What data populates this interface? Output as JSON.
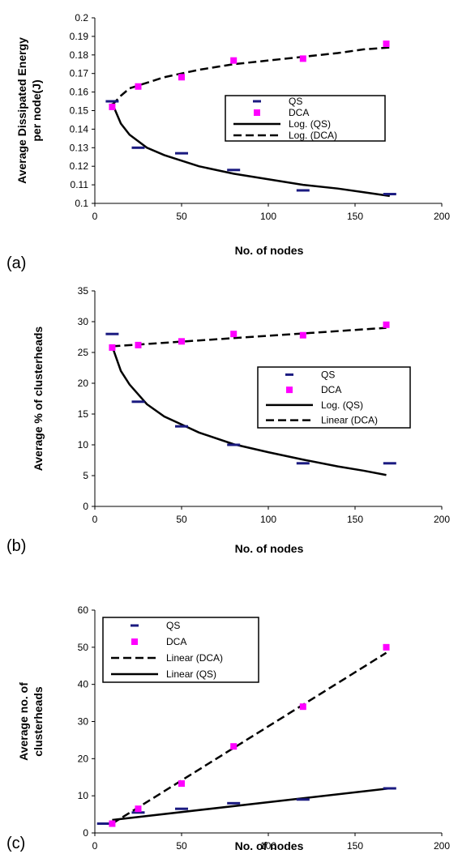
{
  "chart_data": [
    {
      "type": "scatter",
      "panel_label": "(a)",
      "xlabel": "No. of nodes",
      "ylabel": [
        "Average Dissipated Energy",
        "per node(J)"
      ],
      "xlim": [
        0,
        200
      ],
      "ylim": [
        0.1,
        0.2
      ],
      "xticks": [
        "0",
        "50",
        "100",
        "150",
        "200"
      ],
      "yticks": [
        "0.1",
        "0.11",
        "0.12",
        "0.13",
        "0.14",
        "0.15",
        "0.16",
        "0.17",
        "0.18",
        "0.19",
        "0.2"
      ],
      "legend_position": "center-right",
      "series": [
        {
          "name": "QS",
          "marker": "dash",
          "color": "#1a1a80",
          "x": [
            10,
            25,
            50,
            80,
            120,
            170
          ],
          "y": [
            0.155,
            0.13,
            0.127,
            0.118,
            0.107,
            0.105
          ]
        },
        {
          "name": "DCA",
          "marker": "square",
          "color": "#ff00ff",
          "x": [
            10,
            25,
            50,
            80,
            120,
            168
          ],
          "y": [
            0.152,
            0.163,
            0.168,
            0.177,
            0.178,
            0.186
          ]
        },
        {
          "name": "Log. (QS)",
          "line": "solid",
          "color": "#000000",
          "x": [
            10,
            15,
            20,
            30,
            40,
            50,
            60,
            80,
            100,
            120,
            140,
            155,
            170
          ],
          "y": [
            0.154,
            0.143,
            0.137,
            0.13,
            0.126,
            0.123,
            0.12,
            0.116,
            0.113,
            0.11,
            0.108,
            0.106,
            0.104
          ]
        },
        {
          "name": "Log. (DCA)",
          "line": "dashed",
          "color": "#000000",
          "x": [
            10,
            15,
            20,
            30,
            40,
            50,
            60,
            80,
            100,
            120,
            140,
            155,
            170
          ],
          "y": [
            0.153,
            0.158,
            0.162,
            0.165,
            0.168,
            0.17,
            0.172,
            0.175,
            0.177,
            0.179,
            0.181,
            0.183,
            0.184
          ]
        }
      ]
    },
    {
      "type": "scatter",
      "panel_label": "(b)",
      "xlabel": "No. of nodes",
      "ylabel": [
        "Average % of clusterheads"
      ],
      "xlim": [
        0,
        200
      ],
      "ylim": [
        0,
        35
      ],
      "xticks": [
        "0",
        "50",
        "100",
        "150",
        "200"
      ],
      "yticks": [
        "0",
        "5",
        "10",
        "15",
        "20",
        "25",
        "30",
        "35"
      ],
      "legend_position": "center-right",
      "series": [
        {
          "name": "QS",
          "marker": "dash",
          "color": "#1a1a80",
          "x": [
            10,
            25,
            50,
            80,
            120,
            170
          ],
          "y": [
            28,
            17,
            13,
            10,
            7,
            7
          ]
        },
        {
          "name": "DCA",
          "marker": "square",
          "color": "#ff00ff",
          "x": [
            10,
            25,
            50,
            80,
            120,
            168
          ],
          "y": [
            25.8,
            26.2,
            26.8,
            28,
            27.8,
            29.5
          ]
        },
        {
          "name": "Log. (QS)",
          "line": "solid",
          "color": "#000000",
          "x": [
            10,
            15,
            20,
            30,
            40,
            50,
            60,
            80,
            100,
            120,
            140,
            155,
            168
          ],
          "y": [
            26,
            22,
            19.8,
            16.6,
            14.6,
            13.3,
            12,
            10.1,
            8.8,
            7.6,
            6.5,
            5.8,
            5.1
          ]
        },
        {
          "name": "Linear (DCA)",
          "line": "dashed",
          "color": "#000000",
          "x": [
            10,
            168
          ],
          "y": [
            26,
            29
          ]
        }
      ]
    },
    {
      "type": "scatter",
      "panel_label": "(c)",
      "xlabel": "No. of nodes",
      "ylabel": [
        "Average no. of",
        "clusterheads"
      ],
      "xlim": [
        0,
        200
      ],
      "ylim": [
        0,
        60
      ],
      "xticks": [
        "0",
        "50",
        "100",
        "150",
        "200"
      ],
      "yticks": [
        "0",
        "10",
        "20",
        "30",
        "40",
        "50",
        "60"
      ],
      "legend_position": "top-left",
      "series": [
        {
          "name": "QS",
          "marker": "dash",
          "color": "#1a1a80",
          "x": [
            5,
            25,
            50,
            80,
            120,
            170
          ],
          "y": [
            2.5,
            5.5,
            6.5,
            8,
            9,
            12
          ]
        },
        {
          "name": "DCA",
          "marker": "square",
          "color": "#ff00ff",
          "x": [
            10,
            25,
            50,
            80,
            120,
            168
          ],
          "y": [
            2.5,
            6.5,
            13.3,
            23.3,
            34,
            50
          ]
        },
        {
          "name": "Linear (DCA)",
          "line": "dashed",
          "color": "#000000",
          "x": [
            10,
            168
          ],
          "y": [
            2.5,
            48.5
          ]
        },
        {
          "name": "Linear (QS)",
          "line": "solid",
          "color": "#000000",
          "x": [
            10,
            170
          ],
          "y": [
            3.5,
            12
          ]
        }
      ]
    }
  ]
}
